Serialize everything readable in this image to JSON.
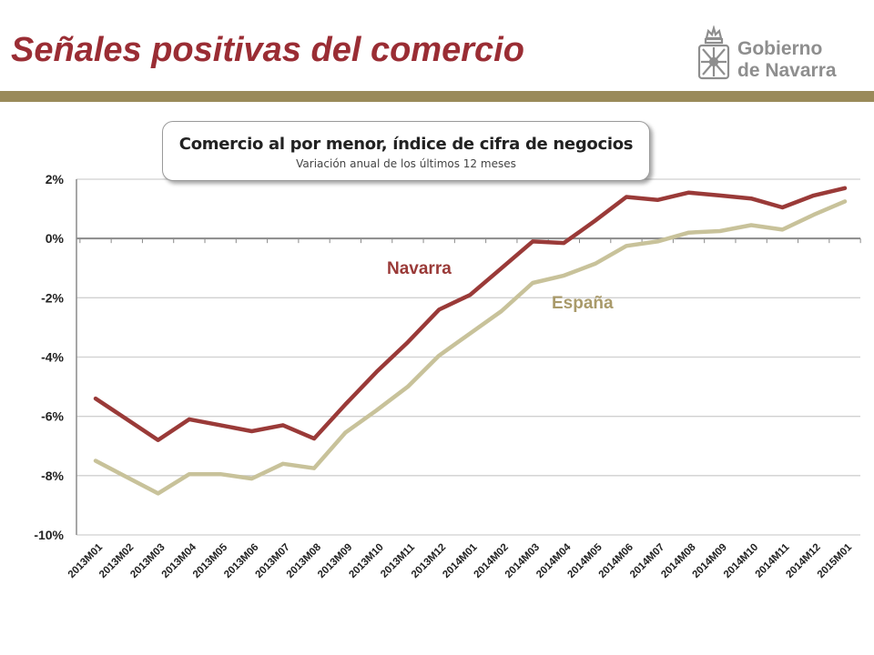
{
  "header": {
    "title": "Señales positivas del comercio"
  },
  "logo": {
    "line1": "Gobierno",
    "line2": "de Navarra",
    "icon": "navarra-coat-of-arms-icon"
  },
  "colors": {
    "accent": "#9a2d34",
    "bar": "#9a8a5a",
    "navarra": "#9a3a38",
    "espana": "#c8c29a",
    "espana_label": "#a99a6a"
  },
  "chart_data": {
    "type": "line",
    "title": "Comercio al por menor, índice de cifra de negocios",
    "subtitle": "Variación anual de los últimos 12 meses",
    "x": [
      "2013M01",
      "2013M02",
      "2013M03",
      "2013M04",
      "2013M05",
      "2013M06",
      "2013M07",
      "2013M08",
      "2013M09",
      "2013M10",
      "2013M11",
      "2013M12",
      "2014M01",
      "2014M02",
      "2014M03",
      "2014M04",
      "2014M05",
      "2014M06",
      "2014M07",
      "2014M08",
      "2014M09",
      "2014M10",
      "2014M11",
      "2014M12",
      "2015M01"
    ],
    "yticks": [
      "2%",
      "0%",
      "-2%",
      "-4%",
      "-6%",
      "-8%",
      "-10%"
    ],
    "ylim": [
      -10,
      2
    ],
    "grid": true,
    "series": [
      {
        "name": "Navarra",
        "values": [
          -5.4,
          -6.1,
          -6.8,
          -6.1,
          -6.3,
          -6.5,
          -6.3,
          -6.75,
          -5.6,
          -4.5,
          -3.5,
          -2.4,
          -1.9,
          -1.0,
          -0.1,
          -0.15,
          0.6,
          1.4,
          1.3,
          1.55,
          1.45,
          1.35,
          1.05,
          1.45,
          1.7
        ]
      },
      {
        "name": "España",
        "values": [
          -7.5,
          -8.05,
          -8.6,
          -7.95,
          -7.95,
          -8.1,
          -7.6,
          -7.75,
          -6.55,
          -5.8,
          -5.0,
          -3.95,
          -3.2,
          -2.45,
          -1.5,
          -1.25,
          -0.85,
          -0.25,
          -0.1,
          0.2,
          0.25,
          0.45,
          0.3,
          0.8,
          1.25
        ]
      }
    ]
  }
}
